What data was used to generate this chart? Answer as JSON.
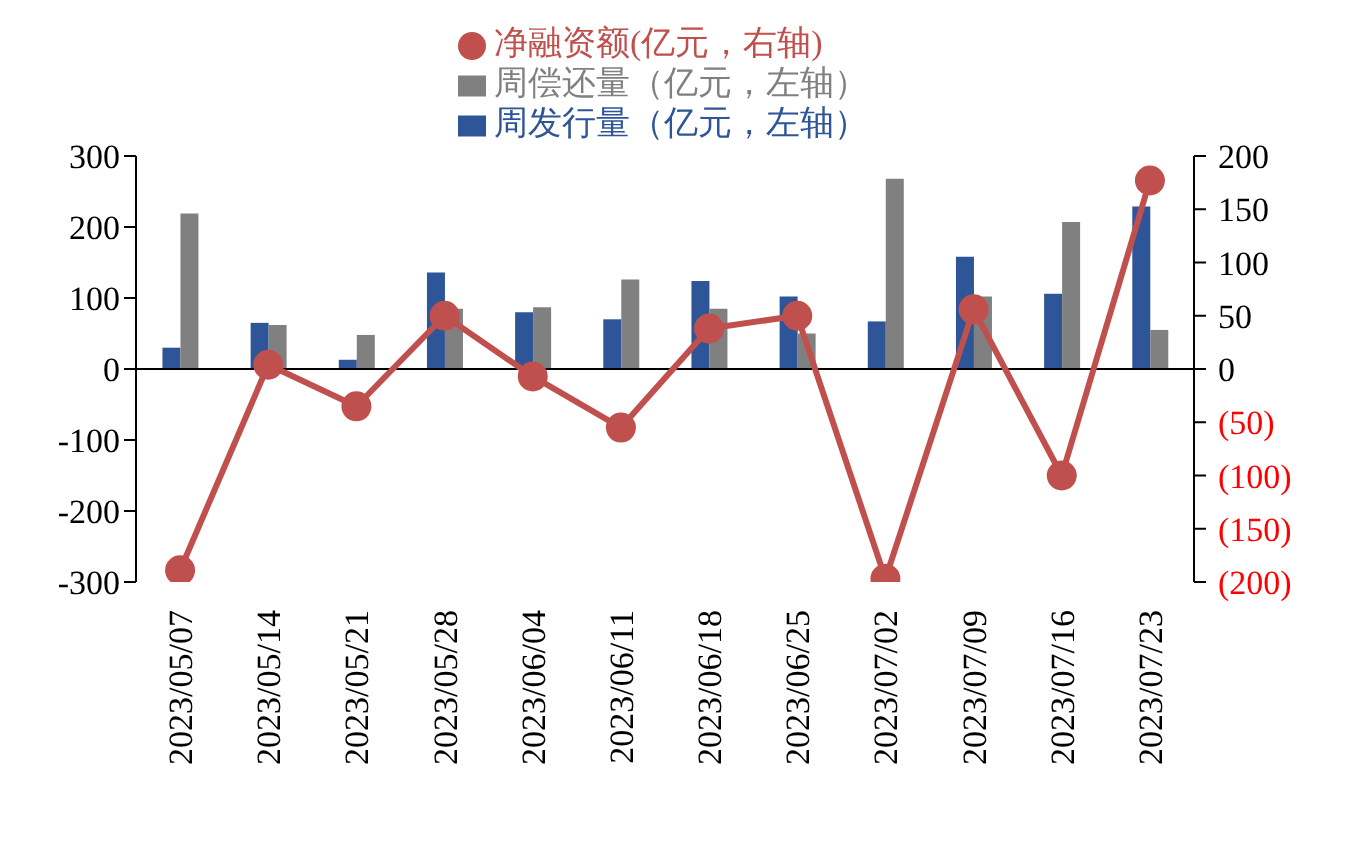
{
  "chart_data": {
    "type": "bar",
    "categories": [
      "2023/05/07",
      "2023/05/14",
      "2023/05/21",
      "2023/05/28",
      "2023/06/04",
      "2023/06/11",
      "2023/06/18",
      "2023/06/25",
      "2023/07/02",
      "2023/07/09",
      "2023/07/16",
      "2023/07/23"
    ],
    "series": [
      {
        "name": "周发行量（亿元，左轴）",
        "color": "#2e5597",
        "values": [
          30,
          65,
          13,
          136,
          80,
          70,
          124,
          102,
          67,
          158,
          106,
          229
        ]
      },
      {
        "name": "周偿还量（亿元，左轴）",
        "color": "#808080",
        "values": [
          219,
          62,
          48,
          85,
          87,
          126,
          85,
          50,
          268,
          102,
          207,
          55
        ]
      },
      {
        "name": "净融资额(亿元，右轴)",
        "type": "line",
        "axis": "y2",
        "marker": "circle",
        "color": "#c0504d",
        "values": [
          -189,
          4,
          -35,
          50,
          -7,
          -55,
          38,
          50,
          -197,
          56,
          -100,
          177
        ]
      }
    ],
    "ylim": [
      -300,
      300
    ],
    "yticks": [
      -300,
      -200,
      -100,
      0,
      100,
      200,
      300
    ],
    "y2lim": [
      -200,
      200
    ],
    "y2ticks": [
      {
        "value": -200,
        "label": "(200)"
      },
      {
        "value": -150,
        "label": "(150)"
      },
      {
        "value": -100,
        "label": "(100)"
      },
      {
        "value": -50,
        "label": "(50)"
      },
      0,
      50,
      100,
      150,
      200
    ],
    "legend": "top"
  }
}
